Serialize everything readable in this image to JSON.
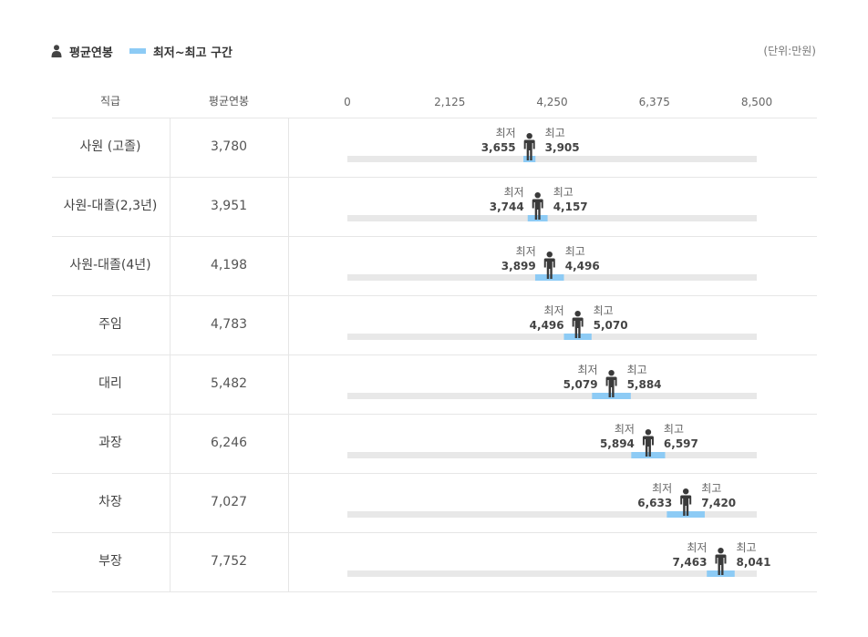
{
  "legend": {
    "avg_label": "평균연봉",
    "range_label": "최저~최고 구간",
    "avg_icon": "person-icon"
  },
  "unit_label": "(단위:만원)",
  "table": {
    "col_rank": "직급",
    "col_avg": "평균연봉"
  },
  "labels": {
    "min": "최저",
    "max": "최고"
  },
  "colors": {
    "range": "#8dcbf5",
    "track": "#e8e8e8",
    "person": "#3a3a3a",
    "grid": "#e6e6e6"
  },
  "chart_data": {
    "type": "bar",
    "xlim": [
      0,
      8500
    ],
    "ticks": [
      "0",
      "2,125",
      "4,250",
      "6,375",
      "8,500"
    ],
    "tick_values": [
      0,
      2125,
      4250,
      6375,
      8500
    ],
    "rows": [
      {
        "rank": "사원 (고졸)",
        "avg": 3780,
        "avg_label": "3,780",
        "min": 3655,
        "min_label": "3,655",
        "max": 3905,
        "max_label": "3,905"
      },
      {
        "rank": "사원-대졸(2,3년)",
        "avg": 3951,
        "avg_label": "3,951",
        "min": 3744,
        "min_label": "3,744",
        "max": 4157,
        "max_label": "4,157"
      },
      {
        "rank": "사원-대졸(4년)",
        "avg": 4198,
        "avg_label": "4,198",
        "min": 3899,
        "min_label": "3,899",
        "max": 4496,
        "max_label": "4,496"
      },
      {
        "rank": "주임",
        "avg": 4783,
        "avg_label": "4,783",
        "min": 4496,
        "min_label": "4,496",
        "max": 5070,
        "max_label": "5,070"
      },
      {
        "rank": "대리",
        "avg": 5482,
        "avg_label": "5,482",
        "min": 5079,
        "min_label": "5,079",
        "max": 5884,
        "max_label": "5,884"
      },
      {
        "rank": "과장",
        "avg": 6246,
        "avg_label": "6,246",
        "min": 5894,
        "min_label": "5,894",
        "max": 6597,
        "max_label": "6,597"
      },
      {
        "rank": "차장",
        "avg": 7027,
        "avg_label": "7,027",
        "min": 6633,
        "min_label": "6,633",
        "max": 7420,
        "max_label": "7,420"
      },
      {
        "rank": "부장",
        "avg": 7752,
        "avg_label": "7,752",
        "min": 7463,
        "min_label": "7,463",
        "max": 8041,
        "max_label": "8,041"
      }
    ]
  }
}
